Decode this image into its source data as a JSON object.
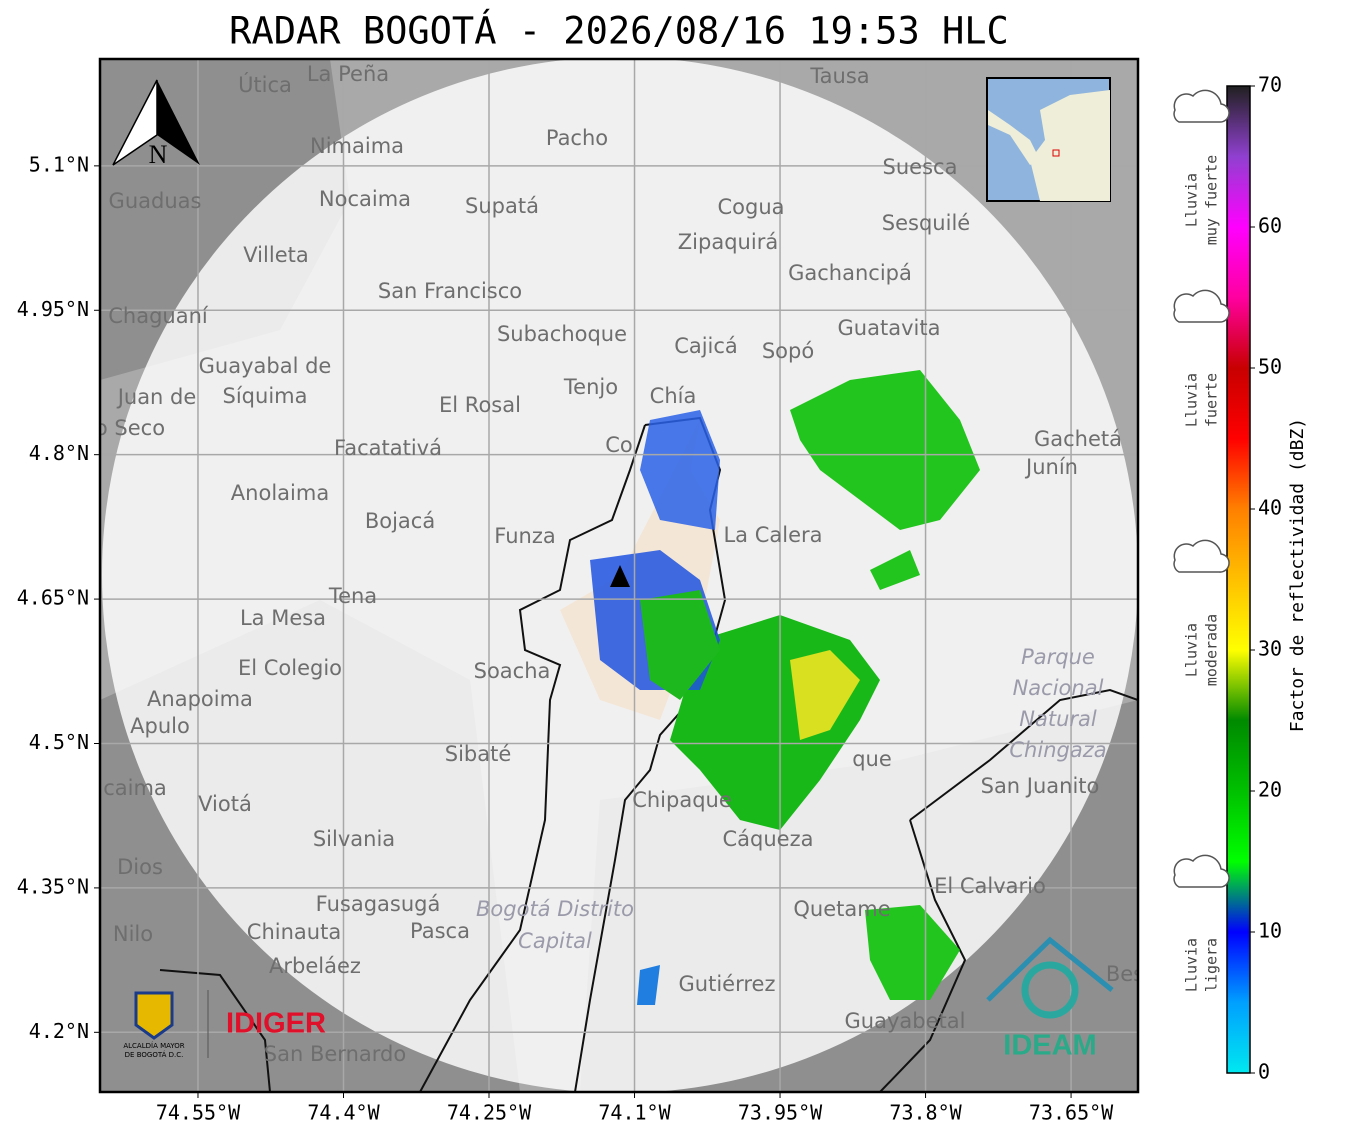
{
  "title": "RADAR BOGOTÁ - 2026/08/16 19:53 HLC",
  "map": {
    "xlim": [
      -74.651,
      -73.581
    ],
    "ylim": [
      4.138,
      5.211
    ],
    "xticks": [
      {
        "value": -74.55,
        "label": "74.55°W"
      },
      {
        "value": -74.4,
        "label": "74.4°W"
      },
      {
        "value": -74.25,
        "label": "74.25°W"
      },
      {
        "value": -74.1,
        "label": "74.1°W"
      },
      {
        "value": -73.95,
        "label": "73.95°W"
      },
      {
        "value": -73.8,
        "label": "73.8°W"
      },
      {
        "value": -73.65,
        "label": "73.65°W"
      }
    ],
    "yticks": [
      {
        "value": 5.1,
        "label": "5.1°N"
      },
      {
        "value": 4.95,
        "label": "4.95°N"
      },
      {
        "value": 4.8,
        "label": "4.8°N"
      },
      {
        "value": 4.65,
        "label": "4.65°N"
      },
      {
        "value": 4.5,
        "label": "4.5°N"
      },
      {
        "value": 4.35,
        "label": "4.35°N"
      },
      {
        "value": 4.2,
        "label": "4.2°N"
      }
    ],
    "north": "N",
    "places": [
      "La Peña",
      "Útica",
      "Tausa",
      "Pacho",
      "Nimaima",
      "Nocaima",
      "Supatá",
      "Guaduas",
      "Suesca",
      "Cogua",
      "Sesquilé",
      "Zipaquirá",
      "Villeta",
      "Gachancipá",
      "San Francisco",
      "Chaguaní",
      "Guatavita",
      "Subachoque",
      "Cajicá",
      "Sopó",
      "Guayabal de",
      "Síquima",
      "Tenjo",
      "Chía",
      "El Rosal",
      "Juan de",
      "o Seco",
      "Facatativá",
      "Co",
      "Gachetá",
      "Junín",
      "Anolaima",
      "Bojacá",
      "Funza",
      "La Calera",
      "Tena",
      "La Mesa",
      "El Colegio",
      "Soacha",
      "Anapoima",
      "Apulo",
      "Sibaté",
      "que",
      "San Juanito",
      "Chipaque",
      "Viotá",
      "caima",
      "Silvania",
      "Cáqueza",
      "Dios",
      "El Calvario",
      "Fusagasugá",
      "Quetame",
      "Nilo",
      "Chinauta",
      "Pasca",
      "Arbeláez",
      "Gutiérrez",
      "Guayabetal",
      "San Bernardo",
      "Bes"
    ],
    "protected_areas": [
      "Parque",
      "Nacional",
      "Natural",
      "Chingaza",
      "Bogotá Distrito",
      "Capital"
    ]
  },
  "colorbar": {
    "label": "Factor de reflectividad (dBZ)",
    "lim": [
      0,
      70
    ],
    "ticks": [
      0,
      10,
      20,
      30,
      40,
      50,
      60,
      70
    ],
    "colors": [
      "#00e8f0",
      "#00a0ff",
      "#0000ff",
      "#00ff00",
      "#00c000",
      "#008a00",
      "#ffff00",
      "#ffc000",
      "#ff8000",
      "#ff0000",
      "#c80000",
      "#ff00a0",
      "#ff00ff",
      "#9040d0",
      "#202020"
    ]
  },
  "rain_levels": [
    {
      "lines": [
        "Lluvia",
        "muy fuerte"
      ]
    },
    {
      "lines": [
        "Lluvia",
        "fuerte"
      ]
    },
    {
      "lines": [
        "Lluvia",
        "moderada"
      ]
    },
    {
      "lines": [
        "Lluvia",
        "ligera"
      ]
    }
  ],
  "logos": {
    "alcaldia": [
      "ALCALDÍA MAYOR",
      "DE BOGOTÁ D.C."
    ],
    "idiger": "IDIGER",
    "ideam": "IDEAM"
  }
}
